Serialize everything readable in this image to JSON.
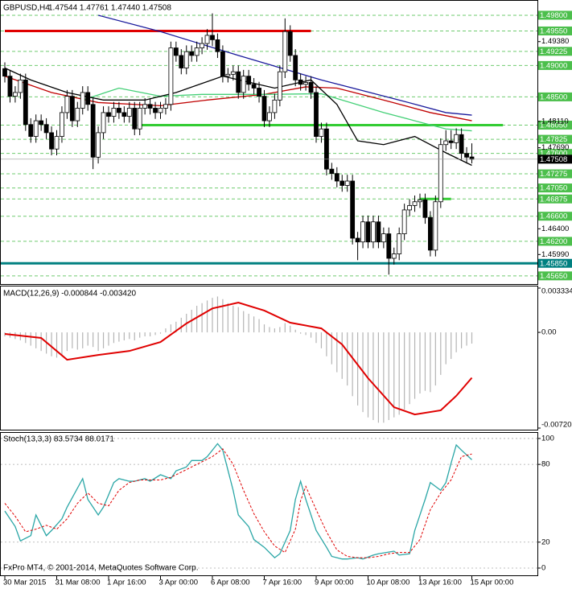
{
  "chart_data": [
    {
      "type": "candlestick",
      "title": "GBPUSD,H4",
      "subtitle": "1.47544 1.47761 1.47440 1.47508",
      "categories": [
        "30 Mar 2015",
        null,
        null,
        null,
        null,
        null,
        null,
        null,
        null,
        null,
        "31 Mar 08:00",
        null,
        null,
        null,
        null,
        null,
        null,
        null,
        null,
        null,
        "1 Apr 16:00",
        null,
        null,
        null,
        null,
        null,
        null,
        null,
        null,
        null,
        "3 Apr 00:00",
        null,
        null,
        null,
        null,
        null,
        null,
        null,
        null,
        null,
        "6 Apr 08:00",
        null,
        null,
        null,
        null,
        null,
        null,
        null,
        null,
        null,
        "7 Apr 16:00",
        null,
        null,
        null,
        null,
        null,
        null,
        null,
        null,
        null,
        "9 Apr 00:00",
        null,
        null,
        null,
        null,
        null,
        null,
        null,
        null,
        null,
        "10 Apr 08:00",
        null,
        null,
        null,
        null,
        null,
        null,
        null,
        null,
        null,
        "13 Apr 16:00",
        null,
        null,
        null,
        null,
        null,
        null,
        null,
        null,
        null,
        "15 Apr 00:00"
      ],
      "open": [
        1.4895,
        1.4883,
        1.4851,
        1.4857,
        1.4877,
        1.4806,
        1.4787,
        1.4812,
        1.4806,
        1.4793,
        1.4767,
        1.4787,
        1.4825,
        1.4851,
        1.4812,
        1.4832,
        1.4857,
        1.4838,
        1.4754,
        1.4793,
        1.4825,
        1.4819,
        1.4832,
        1.4825,
        1.4819,
        1.4832,
        1.4799,
        1.4832,
        1.4838,
        1.4832,
        1.4825,
        1.4832,
        1.4838,
        1.4928,
        1.4916,
        1.4896,
        1.4922,
        1.4916,
        1.4928,
        1.4935,
        1.4948,
        1.4941,
        1.4922,
        1.4883,
        1.4886,
        1.489,
        1.4857,
        1.4883,
        1.487,
        1.4864,
        1.4851,
        1.4812,
        1.4825,
        1.4845,
        1.489,
        1.4954,
        1.4916,
        1.4877,
        1.487,
        1.4873,
        1.4857,
        1.4787,
        1.4799,
        1.4735,
        1.4728,
        1.4716,
        1.4709,
        1.4716,
        1.4625,
        1.4619,
        1.4651,
        1.4619,
        1.4651,
        1.4619,
        1.4632,
        1.4593,
        1.46,
        1.4632,
        1.467,
        1.4677,
        1.4683,
        1.4686,
        1.4658,
        1.4606,
        1.4683,
        1.4774,
        1.478,
        1.4777,
        1.479,
        1.476,
        1.47544
      ],
      "high": [
        1.4905,
        1.4893,
        1.4867,
        1.4887,
        1.4887,
        1.4816,
        1.4822,
        1.4822,
        1.4816,
        1.4803,
        1.4797,
        1.4835,
        1.4861,
        1.4861,
        1.4842,
        1.4867,
        1.4867,
        1.4848,
        1.4803,
        1.4835,
        1.4835,
        1.4842,
        1.4842,
        1.4835,
        1.4842,
        1.4842,
        1.4842,
        1.4848,
        1.4848,
        1.4842,
        1.4842,
        1.4848,
        1.4938,
        1.4938,
        1.4926,
        1.4932,
        1.4932,
        1.4938,
        1.4945,
        1.4958,
        1.4983,
        1.4951,
        1.4932,
        1.4896,
        1.49,
        1.49,
        1.4893,
        1.4893,
        1.488,
        1.4874,
        1.4861,
        1.4835,
        1.4855,
        1.49,
        1.4975,
        1.4964,
        1.4926,
        1.4887,
        1.4883,
        1.4883,
        1.4867,
        1.4809,
        1.4809,
        1.4745,
        1.4738,
        1.4726,
        1.4726,
        1.4726,
        1.4635,
        1.4661,
        1.4661,
        1.4661,
        1.4661,
        1.4642,
        1.4642,
        1.461,
        1.4642,
        1.468,
        1.4687,
        1.4693,
        1.4696,
        1.4696,
        1.4668,
        1.4693,
        1.4784,
        1.4797,
        1.4797,
        1.48,
        1.48,
        1.477,
        1.47761
      ],
      "low": [
        1.4873,
        1.4841,
        1.4841,
        1.4847,
        1.4796,
        1.4777,
        1.4777,
        1.4796,
        1.4783,
        1.4757,
        1.4757,
        1.4777,
        1.4815,
        1.4802,
        1.4802,
        1.4822,
        1.4828,
        1.4735,
        1.4744,
        1.4783,
        1.4809,
        1.4809,
        1.4815,
        1.4809,
        1.4809,
        1.4789,
        1.4789,
        1.4822,
        1.4822,
        1.4815,
        1.4815,
        1.4822,
        1.4828,
        1.4906,
        1.4886,
        1.4886,
        1.4906,
        1.4906,
        1.4918,
        1.4925,
        1.4931,
        1.4912,
        1.4873,
        1.4873,
        1.4876,
        1.4847,
        1.4847,
        1.486,
        1.4854,
        1.4841,
        1.4802,
        1.4802,
        1.4815,
        1.4835,
        1.488,
        1.4906,
        1.4867,
        1.486,
        1.486,
        1.4847,
        1.4777,
        1.4777,
        1.4725,
        1.4718,
        1.4706,
        1.4699,
        1.4699,
        1.4615,
        1.459,
        1.4609,
        1.4609,
        1.4609,
        1.4609,
        1.4609,
        1.4567,
        1.4583,
        1.459,
        1.4622,
        1.466,
        1.4667,
        1.4673,
        1.4648,
        1.4596,
        1.4596,
        1.4673,
        1.4764,
        1.4767,
        1.4767,
        1.475,
        1.4744,
        1.4744
      ],
      "close": [
        1.4883,
        1.4851,
        1.4857,
        1.4877,
        1.4806,
        1.4787,
        1.4812,
        1.4806,
        1.4793,
        1.4767,
        1.4787,
        1.4825,
        1.4851,
        1.4812,
        1.4832,
        1.4857,
        1.4838,
        1.4754,
        1.4793,
        1.4825,
        1.4819,
        1.4832,
        1.4825,
        1.4819,
        1.4832,
        1.4799,
        1.4832,
        1.4838,
        1.4832,
        1.4825,
        1.4832,
        1.4838,
        1.4928,
        1.4916,
        1.4896,
        1.4922,
        1.4916,
        1.4928,
        1.4935,
        1.4948,
        1.4941,
        1.4922,
        1.4883,
        1.4886,
        1.489,
        1.4857,
        1.4883,
        1.487,
        1.4864,
        1.4851,
        1.4812,
        1.4825,
        1.4845,
        1.489,
        1.4954,
        1.4916,
        1.4877,
        1.487,
        1.4873,
        1.4857,
        1.4787,
        1.4799,
        1.4735,
        1.4728,
        1.4716,
        1.4709,
        1.4716,
        1.4625,
        1.4619,
        1.4651,
        1.4619,
        1.4651,
        1.4619,
        1.4632,
        1.4593,
        1.46,
        1.4632,
        1.467,
        1.4677,
        1.4683,
        1.4686,
        1.4658,
        1.4606,
        1.4683,
        1.4774,
        1.478,
        1.4777,
        1.479,
        1.476,
        1.4754,
        1.47508
      ],
      "up_color": "#ffffff",
      "down_color": "#000000",
      "ylim": [
        1.4552,
        1.5003
      ],
      "yticks": [
        {
          "value": 1.4938,
          "label": "1.49380"
        },
        {
          "value": 1.4811,
          "label": "1.48110"
        },
        {
          "value": 1.4769,
          "label": "1.47690"
        },
        {
          "value": 1.464,
          "label": "1.46400"
        },
        {
          "value": 1.4599,
          "label": "1.45990"
        }
      ],
      "level_ticks": [
        {
          "value": 1.498,
          "label": "1.49800"
        },
        {
          "value": 1.4955,
          "label": "1.49550"
        },
        1.49225,
        {
          "value": 1.49,
          "label": "1.49000"
        },
        {
          "value": 1.485,
          "label": "1.48500"
        },
        {
          "value": 1.4805,
          "label": "1.48050"
        },
        1.47825,
        {
          "value": 1.476,
          "label": "1.47600"
        },
        1.47275,
        {
          "value": 1.4705,
          "label": "1.47050"
        },
        1.46875,
        {
          "value": 1.466,
          "label": "1.46600"
        },
        {
          "value": 1.462,
          "label": "1.46200"
        },
        {
          "value": 1.4585,
          "label": "1.45850",
          "color": "#008080"
        },
        {
          "value": 1.4565,
          "label": "1.45650"
        }
      ],
      "level_color": "#4cbf4c",
      "lines": [
        {
          "value": 1.4955,
          "color": "#e00000",
          "from": 0,
          "to": 59
        },
        {
          "value": 1.4805,
          "color": "#33cc33",
          "from": 26,
          "to": 96
        },
        {
          "value": 1.4585,
          "color": "#008080",
          "from": -1,
          "to": 103
        },
        {
          "value": 1.46875,
          "color": "#33cc33",
          "from": 80,
          "to": 86
        }
      ],
      "moving_averages": [
        {
          "color": "#1a1a9c",
          "x": [
            18,
            30,
            45,
            61,
            76,
            85,
            90
          ],
          "values": [
            1.498,
            1.4954,
            1.4916,
            1.4877,
            1.4845,
            1.4825,
            1.4821
          ]
        },
        {
          "color": "#c00000",
          "x": [
            0,
            9,
            18,
            30,
            39,
            50,
            58,
            64,
            73,
            82,
            90
          ],
          "values": [
            1.4883,
            1.4857,
            1.4841,
            1.4836,
            1.4845,
            1.4854,
            1.4866,
            1.4864,
            1.4845,
            1.4825,
            1.4812
          ]
        },
        {
          "color": "#44d077",
          "x": [
            15,
            22,
            30,
            38,
            50,
            61,
            65,
            73,
            79,
            85,
            90
          ],
          "values": [
            1.4845,
            1.4864,
            1.4851,
            1.4854,
            1.4854,
            1.4855,
            1.4845,
            1.4825,
            1.4812,
            1.4799,
            1.4796
          ]
        },
        {
          "color": "#000000",
          "x": [
            0,
            5,
            12,
            19,
            27,
            33,
            42,
            52,
            59,
            64,
            68,
            73,
            79,
            85,
            90
          ],
          "values": [
            1.4896,
            1.4877,
            1.4857,
            1.4845,
            1.4845,
            1.4857,
            1.4883,
            1.4864,
            1.4877,
            1.4838,
            1.478,
            1.4774,
            1.4787,
            1.4761,
            1.4741
          ]
        }
      ]
    },
    {
      "type": "macd",
      "title": "MACD(12,26,9) -0.000844 -0.003420",
      "values": [
        -0.0003,
        -0.0004,
        -0.0005,
        -0.0006,
        -0.0008,
        -0.001,
        -0.0012,
        -0.0014,
        -0.0016,
        -0.0018,
        -0.0019,
        -0.0017,
        -0.0014,
        -0.0012,
        -0.0013,
        -0.0012,
        -0.001,
        -0.0011,
        -0.0014,
        -0.0012,
        -0.001,
        -0.0008,
        -0.0007,
        -0.0006,
        -0.0005,
        -0.0006,
        -0.0004,
        -0.0003,
        -0.0003,
        -0.0002,
        -0.0001,
        0.0003,
        0.0006,
        0.0008,
        0.0011,
        0.0014,
        0.0017,
        0.002,
        0.0022,
        0.0024,
        0.0026,
        0.0027,
        0.0025,
        0.0022,
        0.002,
        0.0019,
        0.0016,
        0.0014,
        0.0012,
        0.001,
        0.0006,
        0.0004,
        0.0003,
        0.0004,
        0.0007,
        0.0005,
        0.0002,
        -0.0001,
        -0.0002,
        -0.0004,
        -0.0008,
        -0.0012,
        -0.0018,
        -0.0024,
        -0.003,
        -0.0035,
        -0.004,
        -0.0048,
        -0.0055,
        -0.006,
        -0.0064,
        -0.0066,
        -0.0068,
        -0.0068,
        -0.0066,
        -0.0064,
        -0.0062,
        -0.0058,
        -0.0054,
        -0.005,
        -0.0046,
        -0.0044,
        -0.0045,
        -0.004,
        -0.0032,
        -0.0024,
        -0.002,
        -0.0015,
        -0.0012,
        -0.001,
        -0.000844
      ],
      "color": "#b4b4b4",
      "signal": {
        "color": "#e00000",
        "x": [
          0,
          7,
          12,
          18,
          24,
          30,
          35,
          40,
          45,
          50,
          55,
          61,
          65,
          70,
          75,
          79,
          84,
          87,
          90
        ],
        "values": [
          -0.00012,
          -0.00042,
          -0.00206,
          -0.0017,
          -0.0014,
          -0.00073,
          0.00067,
          0.0018,
          0.00224,
          0.00164,
          0.00073,
          0.0003,
          -0.00091,
          -0.00345,
          -0.00563,
          -0.00618,
          -0.00587,
          -0.00478,
          -0.00342
        ]
      },
      "ylim": [
        -0.007203,
        0.003334
      ],
      "yticks": [
        0.003334,
        {
          "value": 0,
          "label": "0.00"
        },
        -0.007203
      ]
    },
    {
      "type": "stochastic",
      "title": "Stoch(13,3,3) 83.5734 88.0171",
      "main": {
        "color": "#2aa6a6",
        "x": [
          0,
          2,
          3,
          5,
          6,
          8,
          9,
          11,
          12,
          15,
          16,
          18,
          19,
          21,
          22,
          24,
          25,
          27,
          28,
          30,
          32,
          33,
          35,
          36,
          38,
          39,
          41,
          42,
          44,
          45,
          47,
          48,
          50,
          52,
          53,
          55,
          56,
          57,
          58,
          60,
          62,
          63,
          65,
          66,
          68,
          69,
          71,
          72,
          75,
          76,
          78,
          79,
          81,
          82,
          84,
          85,
          86,
          87,
          88,
          90
        ],
        "values": [
          44,
          32,
          21,
          25,
          41,
          25,
          29,
          38,
          47,
          69,
          53,
          41,
          47,
          66,
          69,
          67,
          67,
          69,
          67,
          72,
          69,
          75,
          78,
          83,
          83,
          86,
          96,
          91,
          60,
          41,
          32,
          22,
          16,
          8,
          11,
          29,
          53,
          67,
          53,
          29,
          16,
          9,
          7,
          7,
          8,
          7,
          10,
          11,
          13,
          10,
          11,
          29,
          53,
          66,
          60,
          66,
          81,
          95,
          91,
          83.5734
        ]
      },
      "signal": {
        "color": "#e00000",
        "dashed": true,
        "x": [
          0,
          2,
          4,
          6,
          8,
          10,
          12,
          14,
          16,
          18,
          20,
          22,
          24,
          26,
          28,
          30,
          32,
          34,
          36,
          38,
          40,
          42,
          44,
          46,
          48,
          50,
          52,
          54,
          56,
          57,
          58,
          60,
          62,
          64,
          66,
          68,
          70,
          72,
          74,
          76,
          78,
          80,
          82,
          84,
          86,
          88,
          90
        ],
        "values": [
          50,
          40,
          28,
          30,
          33,
          30,
          38,
          50,
          58,
          50,
          48,
          60,
          66,
          68,
          68,
          68,
          70,
          74,
          78,
          82,
          86,
          92,
          80,
          60,
          42,
          28,
          17,
          12,
          30,
          52,
          63,
          45,
          28,
          14,
          9,
          8,
          8,
          9,
          11,
          12,
          12,
          22,
          45,
          58,
          68,
          86,
          88.0171
        ]
      },
      "ylim": [
        -5.6,
        104.3
      ],
      "yticks": [
        100,
        80,
        20,
        0
      ]
    }
  ],
  "footer": "FxPro MT4, © 2001-2014, MetaQuotes Software Corp."
}
